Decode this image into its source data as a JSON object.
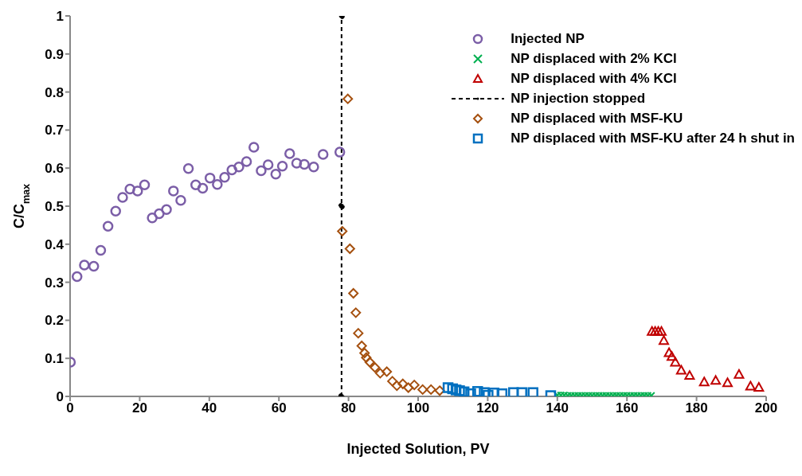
{
  "chart_data": {
    "type": "scatter",
    "xlabel": "Injected Solution, PV",
    "ylabel": "C/C$_{max}$",
    "xlim": [
      0,
      200
    ],
    "xticks": [
      0,
      20,
      40,
      60,
      80,
      100,
      120,
      140,
      160,
      180,
      200
    ],
    "ylim": [
      0,
      1
    ],
    "yticks": [
      0,
      0.1,
      0.2,
      0.3,
      0.4,
      0.5,
      0.6,
      0.7,
      0.8,
      0.9,
      1
    ],
    "grid": false,
    "legend": "top right",
    "series": [
      {
        "name": "Injected NP",
        "color": "#7b5ea7",
        "marker": "circle",
        "x": [
          0.1,
          2.0,
          4.1,
          6.8,
          8.8,
          10.9,
          13.1,
          15.1,
          17.2,
          19.4,
          21.4,
          23.6,
          25.6,
          27.7,
          29.7,
          31.8,
          34.0,
          36.1,
          38.1,
          40.2,
          42.3,
          44.4,
          46.5,
          48.5,
          50.7,
          52.8,
          54.9,
          56.9,
          59.1,
          61.0,
          63.1,
          65.1,
          67.3,
          70.0,
          72.7,
          77.5
        ],
        "values": [
          0.09,
          0.315,
          0.345,
          0.342,
          0.384,
          0.447,
          0.487,
          0.523,
          0.545,
          0.54,
          0.556,
          0.469,
          0.48,
          0.491,
          0.54,
          0.515,
          0.599,
          0.556,
          0.547,
          0.574,
          0.557,
          0.576,
          0.595,
          0.603,
          0.617,
          0.655,
          0.593,
          0.609,
          0.584,
          0.605,
          0.638,
          0.613,
          0.61,
          0.603,
          0.636,
          0.642
        ]
      },
      {
        "name": "NP displaced with 2% KCl",
        "color": "#00b050",
        "marker": "cross",
        "x": [
          140,
          141,
          142,
          143,
          144,
          145,
          146,
          147,
          148,
          149,
          150,
          151,
          152,
          153,
          154,
          155,
          156,
          157,
          158,
          159,
          160,
          161,
          162,
          163,
          164,
          165,
          166,
          167
        ],
        "values": [
          0.003,
          0.003,
          0.003,
          0.002,
          0.002,
          0.002,
          0.002,
          0.002,
          0.002,
          0.002,
          0.002,
          0.002,
          0.002,
          0.002,
          0.002,
          0.002,
          0.002,
          0.002,
          0.002,
          0.002,
          0.002,
          0.002,
          0.002,
          0.002,
          0.002,
          0.002,
          0.002,
          0.002
        ]
      },
      {
        "name": "NP displaced with 4% KCl",
        "color": "#c00000",
        "marker": "triangle",
        "x": [
          167.2,
          168.1,
          169.0,
          169.9,
          170.6,
          172.1,
          172.9,
          173.9,
          175.6,
          178.0,
          182.2,
          185.5,
          188.9,
          192.2,
          195.5,
          197.9
        ],
        "values": [
          0.171,
          0.171,
          0.171,
          0.171,
          0.147,
          0.115,
          0.105,
          0.09,
          0.069,
          0.055,
          0.038,
          0.042,
          0.036,
          0.058,
          0.027,
          0.024
        ]
      },
      {
        "name": "NP injection stopped",
        "type": "line",
        "color": "#000000",
        "line_style": "dashed",
        "marker": "circle",
        "x": [
          78,
          78,
          78
        ],
        "values": [
          0,
          0.5,
          1
        ]
      },
      {
        "name": "NP displaced with MSF-KU",
        "color": "#a5500f",
        "marker": "diamond",
        "x": [
          78.2,
          79.8,
          80.4,
          81.4,
          82.1,
          82.8,
          83.8,
          84.6,
          85.1,
          86.1,
          87.6,
          89.1,
          91.0,
          92.6,
          93.9,
          95.6,
          97.2,
          98.9,
          101.3,
          103.7,
          106.2
        ],
        "values": [
          0.434,
          0.782,
          0.388,
          0.271,
          0.22,
          0.166,
          0.133,
          0.114,
          0.102,
          0.09,
          0.076,
          0.061,
          0.065,
          0.04,
          0.028,
          0.033,
          0.023,
          0.03,
          0.018,
          0.018,
          0.015
        ]
      },
      {
        "name": "NP displaced with MSF-KU after 24 h shut in",
        "color": "#0070c0",
        "marker": "square",
        "x": [
          108.6,
          109.9,
          110.9,
          111.9,
          113.2,
          115.1,
          117.1,
          119.0,
          120.1,
          121.8,
          124.1,
          127.4,
          129.8,
          133.0,
          138.1
        ],
        "values": [
          0.023,
          0.02,
          0.017,
          0.015,
          0.012,
          0.007,
          0.013,
          0.01,
          0.003,
          0.009,
          0.007,
          0.01,
          0.01,
          0.01,
          0.002
        ]
      }
    ]
  }
}
